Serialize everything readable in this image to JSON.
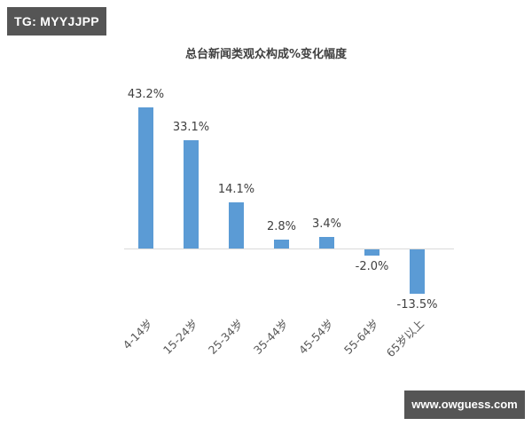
{
  "watermarks": {
    "top_left": "TG: MYYJJPP",
    "bottom_right": "www.owguess.com"
  },
  "chart_data": {
    "type": "bar",
    "title": "总台新闻类观众构成%变化幅度",
    "xlabel": "",
    "ylabel": "",
    "categories": [
      "4-14岁",
      "15-24岁",
      "25-34岁",
      "35-44岁",
      "45-54岁",
      "55-64岁",
      "65岁以上"
    ],
    "values": [
      43.2,
      33.1,
      14.1,
      2.8,
      3.4,
      -2.0,
      -13.5
    ],
    "data_labels": [
      "43.2%",
      "33.1%",
      "14.1%",
      "2.8%",
      "3.4%",
      "-2.0%",
      "-13.5%"
    ],
    "ylim": [
      -15,
      45
    ],
    "grid": false,
    "legend": null,
    "bar_color": "#5b9bd5",
    "axis_color": "#d9d9d9",
    "y_axis_visible": false
  }
}
